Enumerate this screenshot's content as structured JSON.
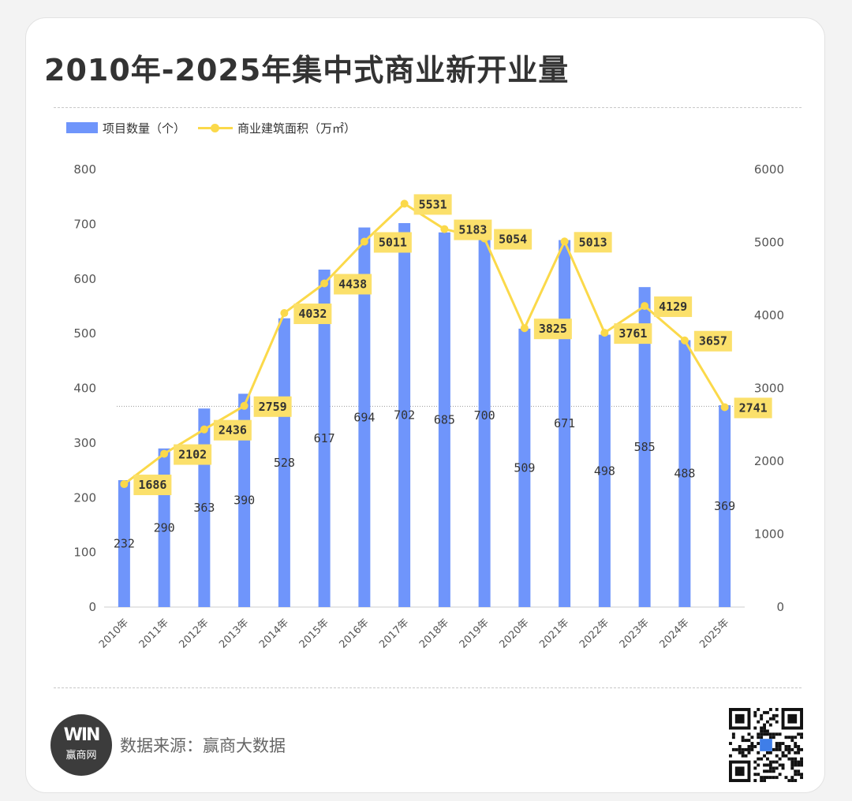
{
  "title": "2010年-2025年集中式商业新开业量",
  "source": "数据来源：赢商大数据",
  "logo": {
    "main": "WIN",
    "sub": "赢商网"
  },
  "colors": {
    "bar": "#6f95fb",
    "line": "#fbd94a",
    "label_bg": "#fbe06b"
  },
  "chart_data": {
    "type": "bar",
    "title": "2010年-2025年集中式商业新开业量",
    "categories": [
      "2010年",
      "2011年",
      "2012年",
      "2013年",
      "2014年",
      "2015年",
      "2016年",
      "2017年",
      "2018年",
      "2019年",
      "2020年",
      "2021年",
      "2022年",
      "2023年",
      "2024年",
      "2025年"
    ],
    "series": [
      {
        "name": "项目数量（个）",
        "type": "bar",
        "axis": "left",
        "values": [
          232,
          290,
          363,
          390,
          528,
          617,
          694,
          702,
          685,
          700,
          509,
          671,
          498,
          585,
          488,
          369
        ]
      },
      {
        "name": "商业建筑面积（万㎡）",
        "type": "line",
        "axis": "right",
        "values": [
          1686,
          2102,
          2436,
          2759,
          4032,
          4438,
          5011,
          5531,
          5183,
          5054,
          3825,
          5013,
          3761,
          4129,
          3657,
          2741
        ]
      }
    ],
    "y_left": {
      "min": 0,
      "max": 800,
      "ticks": [
        0,
        100,
        200,
        300,
        400,
        500,
        600,
        700,
        800
      ]
    },
    "y_right": {
      "min": 0,
      "max": 6000,
      "ticks": [
        0,
        1000,
        2000,
        3000,
        4000,
        5000,
        6000
      ]
    },
    "legend_position": "top-left",
    "reference_line_value_left": 367
  }
}
